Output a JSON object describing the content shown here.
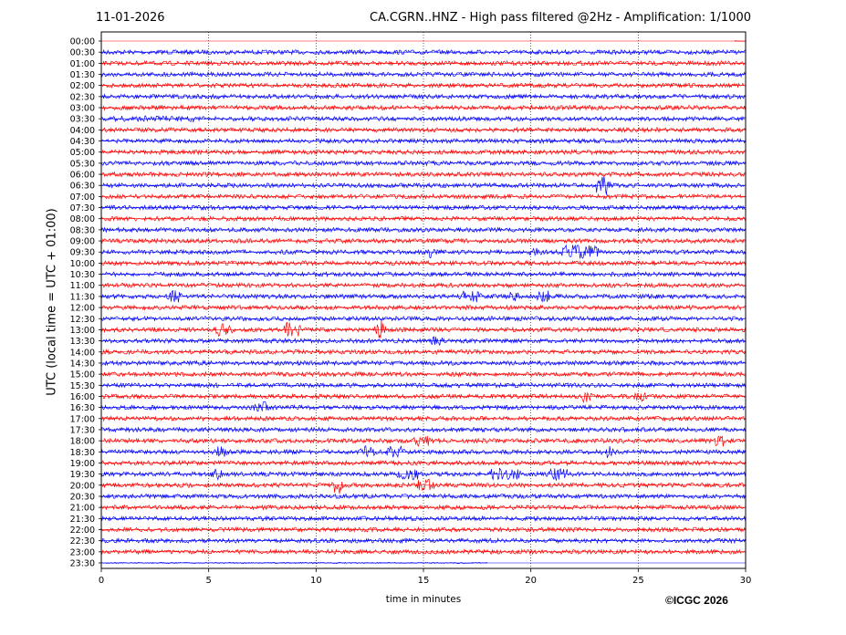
{
  "header": {
    "date": "11-01-2026",
    "title": "CA.CGRN..HNZ - High pass filtered @2Hz - Amplification: 1/1000"
  },
  "footer": {
    "copyright": "©ICGC 2026"
  },
  "chart_data": {
    "type": "line",
    "title": "CA.CGRN..HNZ - High pass filtered @2Hz - Amplification: 1/1000",
    "xlabel": "time in minutes",
    "ylabel": "UTC (local time = UTC + 01:00)",
    "xlim": [
      0,
      30
    ],
    "x_ticks": [
      0,
      5,
      10,
      15,
      20,
      25,
      30
    ],
    "grid": "vertical dotted",
    "colors": {
      "odd_rows": "#ff0000",
      "even_rows": "#0000ff"
    },
    "rows": [
      "00:00",
      "00:30",
      "01:00",
      "01:30",
      "02:00",
      "02:30",
      "03:00",
      "03:30",
      "04:00",
      "04:30",
      "05:00",
      "05:30",
      "06:00",
      "06:30",
      "07:00",
      "07:30",
      "08:00",
      "08:30",
      "09:00",
      "09:30",
      "10:00",
      "10:30",
      "11:00",
      "11:30",
      "12:00",
      "12:30",
      "13:00",
      "13:30",
      "14:00",
      "14:30",
      "15:00",
      "15:30",
      "16:00",
      "16:30",
      "17:00",
      "17:30",
      "18:00",
      "18:30",
      "19:00",
      "19:30",
      "20:00",
      "20:30",
      "21:00",
      "21:30",
      "22:00",
      "22:30",
      "23:00",
      "23:30"
    ],
    "data_range_minutes": {
      "first_row_start": 29.5,
      "last_row_end": 18.0
    },
    "events": [
      {
        "row": "03:30",
        "minute": 2.5,
        "amplitude": 0.3,
        "duration": 4.0
      },
      {
        "row": "06:30",
        "minute": 23.3,
        "amplitude": 1.0,
        "duration": 0.5
      },
      {
        "row": "09:30",
        "minute": 15.4,
        "amplitude": 0.6,
        "duration": 0.2
      },
      {
        "row": "09:30",
        "minute": 20.2,
        "amplitude": 0.5,
        "duration": 0.4
      },
      {
        "row": "09:30",
        "minute": 22.3,
        "amplitude": 0.7,
        "duration": 1.5
      },
      {
        "row": "11:30",
        "minute": 3.4,
        "amplitude": 0.6,
        "duration": 0.6
      },
      {
        "row": "11:30",
        "minute": 17.2,
        "amplitude": 0.6,
        "duration": 0.8
      },
      {
        "row": "11:30",
        "minute": 19.2,
        "amplitude": 0.5,
        "duration": 0.3
      },
      {
        "row": "11:30",
        "minute": 20.6,
        "amplitude": 0.6,
        "duration": 0.4
      },
      {
        "row": "13:00",
        "minute": 5.7,
        "amplitude": 0.7,
        "duration": 0.5
      },
      {
        "row": "13:00",
        "minute": 8.9,
        "amplitude": 0.8,
        "duration": 0.5
      },
      {
        "row": "13:00",
        "minute": 13.0,
        "amplitude": 1.0,
        "duration": 0.2
      },
      {
        "row": "13:30",
        "minute": 15.6,
        "amplitude": 0.5,
        "duration": 0.4
      },
      {
        "row": "16:00",
        "minute": 22.6,
        "amplitude": 0.6,
        "duration": 0.3
      },
      {
        "row": "16:00",
        "minute": 25.1,
        "amplitude": 0.6,
        "duration": 0.4
      },
      {
        "row": "16:30",
        "minute": 7.4,
        "amplitude": 0.6,
        "duration": 0.6
      },
      {
        "row": "18:00",
        "minute": 15.0,
        "amplitude": 0.6,
        "duration": 0.8
      },
      {
        "row": "18:00",
        "minute": 28.8,
        "amplitude": 0.6,
        "duration": 0.4
      },
      {
        "row": "18:30",
        "minute": 5.6,
        "amplitude": 0.6,
        "duration": 0.3
      },
      {
        "row": "18:30",
        "minute": 12.4,
        "amplitude": 0.6,
        "duration": 0.4
      },
      {
        "row": "18:30",
        "minute": 13.8,
        "amplitude": 0.6,
        "duration": 0.8
      },
      {
        "row": "18:30",
        "minute": 23.6,
        "amplitude": 0.6,
        "duration": 0.4
      },
      {
        "row": "19:30",
        "minute": 5.4,
        "amplitude": 0.6,
        "duration": 0.3
      },
      {
        "row": "19:30",
        "minute": 14.3,
        "amplitude": 0.6,
        "duration": 0.8
      },
      {
        "row": "19:30",
        "minute": 18.8,
        "amplitude": 0.6,
        "duration": 1.2
      },
      {
        "row": "19:30",
        "minute": 21.3,
        "amplitude": 0.6,
        "duration": 0.8
      },
      {
        "row": "20:00",
        "minute": 11.0,
        "amplitude": 0.9,
        "duration": 0.2
      },
      {
        "row": "20:00",
        "minute": 15.1,
        "amplitude": 0.6,
        "duration": 0.6
      }
    ]
  }
}
